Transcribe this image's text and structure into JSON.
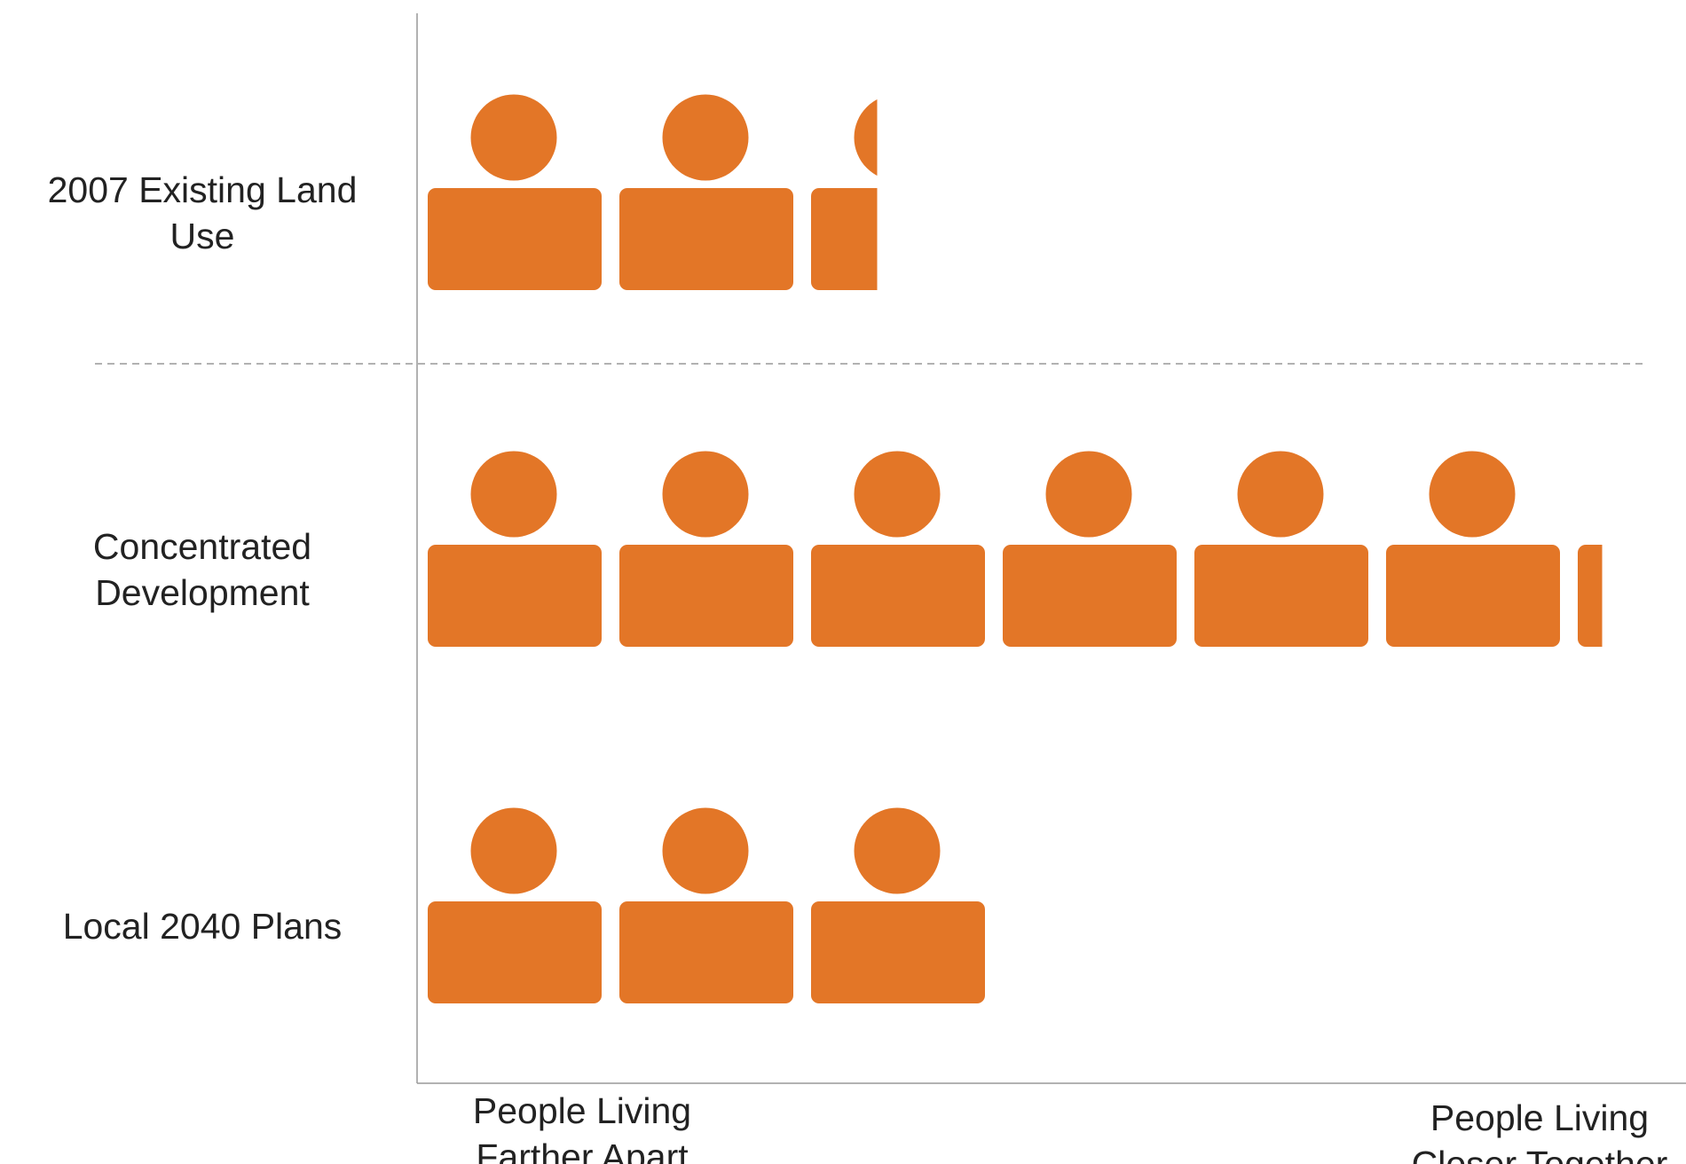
{
  "chart_data": {
    "type": "pictograph",
    "categories": [
      "2007 Existing Land Use",
      "Concentrated Development",
      "Local 2040 Plans"
    ],
    "values": [
      2.38,
      6.14,
      3
    ],
    "color": "#e37627",
    "x_label_left": "People Living Farther Apart",
    "x_label_right": "People Living Closer Together"
  }
}
